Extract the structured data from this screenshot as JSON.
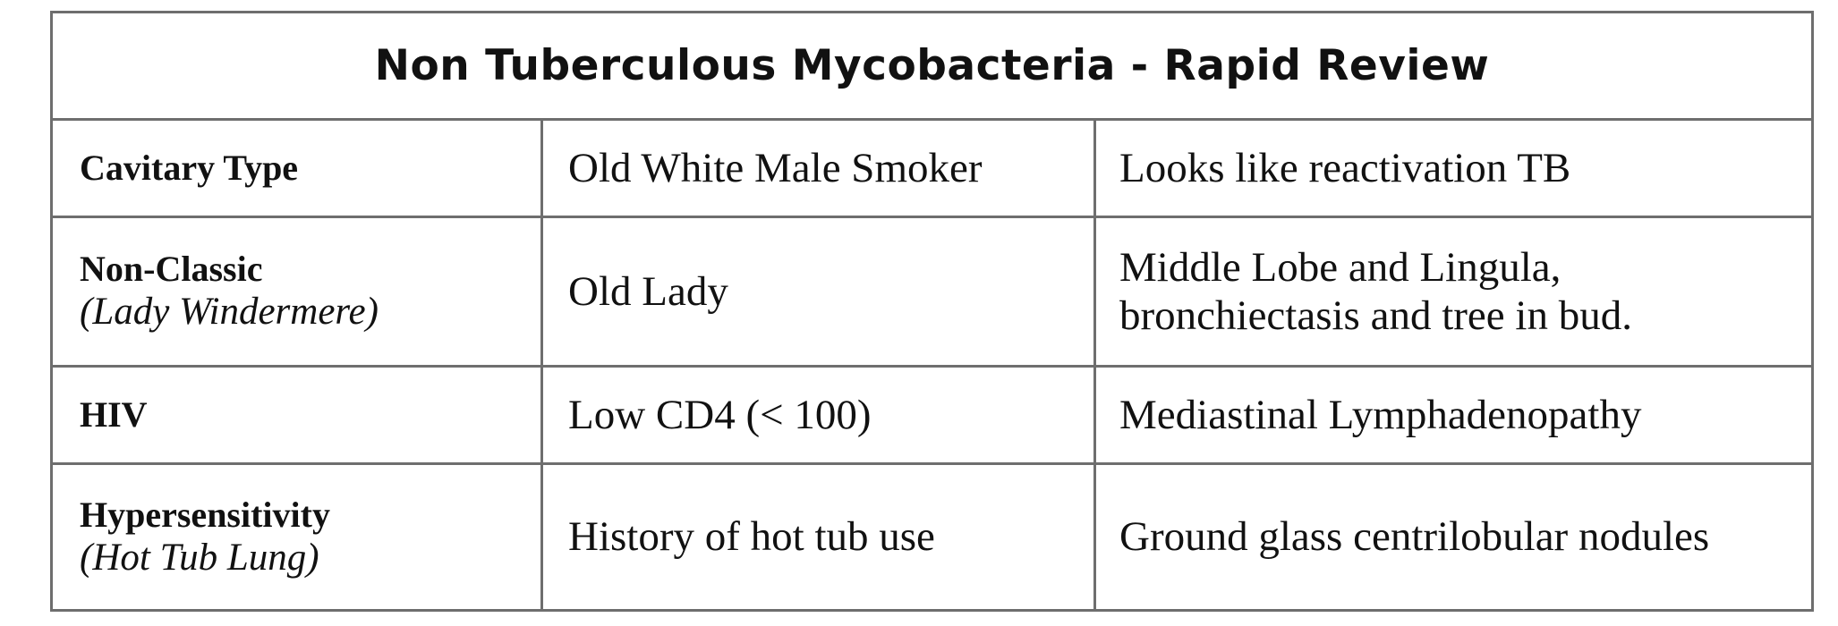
{
  "table": {
    "title": "Non Tuberculous Mycobacteria - Rapid Review",
    "rows": [
      {
        "type": "Cavitary Type",
        "alias": "",
        "patient": "Old White Male Smoker",
        "finding_line1": "Looks like reactivation TB",
        "finding_line2": ""
      },
      {
        "type": "Non-Classic",
        "alias": "(Lady Windermere)",
        "patient": "Old Lady",
        "finding_line1": "Middle Lobe and Lingula,",
        "finding_line2": "bronchiectasis and tree in bud."
      },
      {
        "type": "HIV",
        "alias": "",
        "patient": "Low CD4 (< 100)",
        "finding_line1": "Mediastinal Lymphadenopathy",
        "finding_line2": ""
      },
      {
        "type": "Hypersensitivity",
        "alias": "(Hot Tub Lung)",
        "patient": "History of hot tub use",
        "finding_line1": "Ground glass centrilobular nodules",
        "finding_line2": ""
      }
    ]
  }
}
